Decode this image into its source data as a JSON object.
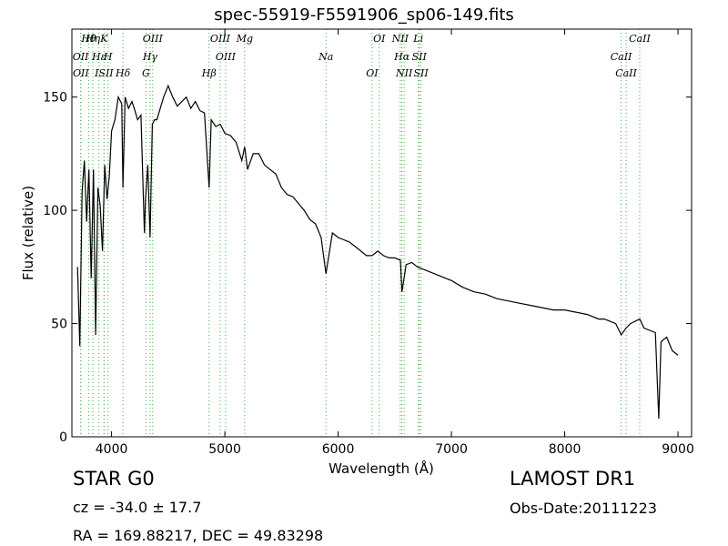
{
  "title": "spec-55919-F5591906_sp06-149.fits",
  "footer": {
    "class_label": "STAR   G0",
    "cz": "cz = -34.0 ± 17.7",
    "radec": "RA = 169.88217, DEC = 49.83298",
    "survey": "LAMOST DR1",
    "obs_date": "Obs-Date:20111223"
  },
  "chart_data": {
    "type": "line",
    "title": "spec-55919-F5591906_sp06-149.fits",
    "xlabel": "Wavelength (Å)",
    "ylabel": "Flux (relative)",
    "xlim": [
      3650,
      9120
    ],
    "ylim": [
      0,
      180
    ],
    "xticks": [
      4000,
      5000,
      6000,
      7000,
      8000,
      9000
    ],
    "yticks": [
      0,
      50,
      100,
      150
    ],
    "grid": false,
    "colors": {
      "spectrum": "#000000",
      "lines": "#3cb043"
    },
    "spectrum": {
      "x": [
        3700,
        3720,
        3740,
        3760,
        3780,
        3800,
        3820,
        3840,
        3860,
        3880,
        3900,
        3920,
        3940,
        3960,
        3980,
        4000,
        4030,
        4060,
        4090,
        4101,
        4120,
        4150,
        4180,
        4200,
        4230,
        4260,
        4290,
        4300,
        4320,
        4340,
        4360,
        4380,
        4400,
        4430,
        4460,
        4500,
        4540,
        4580,
        4620,
        4660,
        4700,
        4740,
        4780,
        4820,
        4861,
        4880,
        4920,
        4960,
        5000,
        5050,
        5100,
        5150,
        5175,
        5200,
        5250,
        5300,
        5350,
        5400,
        5450,
        5500,
        5550,
        5600,
        5650,
        5700,
        5750,
        5800,
        5850,
        5893,
        5950,
        6000,
        6050,
        6100,
        6150,
        6200,
        6250,
        6300,
        6350,
        6400,
        6450,
        6500,
        6550,
        6563,
        6600,
        6650,
        6700,
        6750,
        6800,
        6900,
        7000,
        7100,
        7200,
        7300,
        7400,
        7500,
        7600,
        7700,
        7800,
        7900,
        8000,
        8100,
        8200,
        8300,
        8350,
        8400,
        8450,
        8498,
        8542,
        8580,
        8662,
        8700,
        8750,
        8800,
        8830,
        8850,
        8900,
        8950,
        9000
      ],
      "y": [
        75,
        40,
        108,
        122,
        95,
        118,
        70,
        118,
        45,
        110,
        102,
        82,
        120,
        105,
        115,
        135,
        140,
        150,
        147,
        110,
        150,
        145,
        148,
        145,
        140,
        142,
        90,
        105,
        120,
        88,
        138,
        140,
        140,
        145,
        150,
        155,
        150,
        146,
        148,
        150,
        145,
        148,
        144,
        143,
        110,
        140,
        137,
        138,
        134,
        133,
        130,
        122,
        128,
        118,
        125,
        125,
        120,
        118,
        116,
        110,
        107,
        106,
        103,
        100,
        96,
        94,
        88,
        72,
        90,
        88,
        87,
        86,
        84,
        82,
        80,
        80,
        82,
        80,
        79,
        79,
        78,
        64,
        76,
        77,
        75,
        74,
        73,
        71,
        69,
        66,
        64,
        63,
        61,
        60,
        59,
        58,
        57,
        56,
        56,
        55,
        54,
        52,
        52,
        51,
        50,
        45,
        48,
        50,
        52,
        48,
        47,
        46,
        8,
        42,
        44,
        38,
        36
      ]
    },
    "lines": [
      {
        "name": "Hθ",
        "x": 3798
      },
      {
        "name": "OII",
        "x": 3727
      },
      {
        "name": "OII",
        "x": 3729
      },
      {
        "name": "Hη",
        "x": 3835
      },
      {
        "name": "Hε",
        "x": 3889
      },
      {
        "name": "ISII",
        "x": 3934
      },
      {
        "name": "K",
        "x": 3934
      },
      {
        "name": "H",
        "x": 3969
      },
      {
        "name": "Hδ",
        "x": 4101
      },
      {
        "name": "OIII",
        "x": 4363
      },
      {
        "name": "Hγ",
        "x": 4340
      },
      {
        "name": "G",
        "x": 4304
      },
      {
        "name": "OIII",
        "x": 4959
      },
      {
        "name": "OIII",
        "x": 5007
      },
      {
        "name": "Hβ",
        "x": 4861
      },
      {
        "name": "Mg",
        "x": 5175
      },
      {
        "name": "Na",
        "x": 5893
      },
      {
        "name": "OI",
        "x": 6300
      },
      {
        "name": "OI",
        "x": 6363
      },
      {
        "name": "Hα",
        "x": 6563
      },
      {
        "name": "NII",
        "x": 6583
      },
      {
        "name": "NII",
        "x": 6548
      },
      {
        "name": "SII",
        "x": 6716
      },
      {
        "name": "SII",
        "x": 6731
      },
      {
        "name": "Li",
        "x": 6708
      },
      {
        "name": "CaII",
        "x": 8498
      },
      {
        "name": "CaII",
        "x": 8542
      },
      {
        "name": "CaII",
        "x": 8662
      }
    ]
  }
}
